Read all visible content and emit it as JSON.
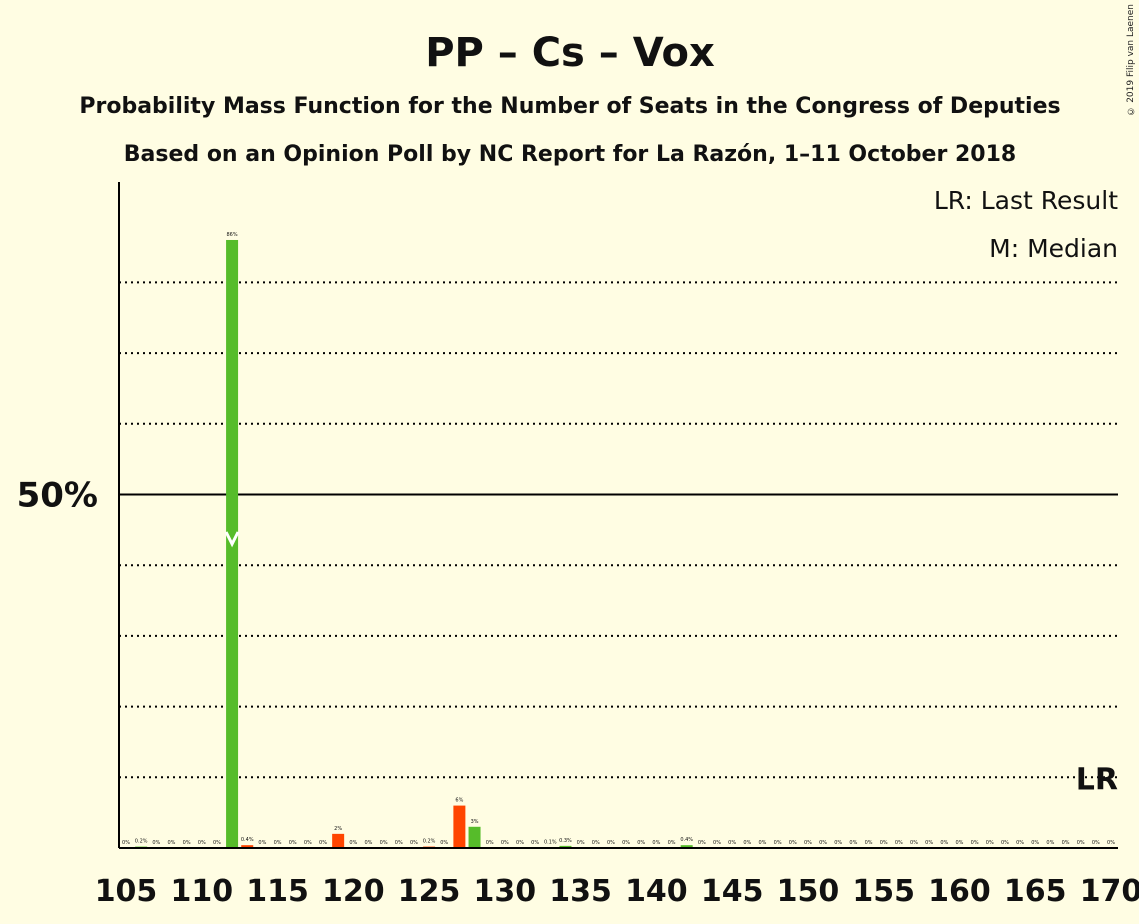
{
  "copyright": "© 2019 Filip van Laenen",
  "chart_data": {
    "type": "bar",
    "title": "PP – Cs – Vox",
    "subtitle": "Probability Mass Function for the Number of Seats in the Congress of Deputies",
    "subtitle2": "Based on an Opinion Poll by NC Report for La Razón, 1–11 October 2018",
    "legend": [
      "LR: Last Result",
      "M: Median"
    ],
    "y_tick_label": "50%",
    "y_tick_value": 50,
    "ylim": [
      0,
      100
    ],
    "dotted_gridlines": [
      10,
      20,
      30,
      40,
      60,
      70,
      80
    ],
    "x_range": [
      105,
      170
    ],
    "x_tick_labels": [
      "105",
      "110",
      "115",
      "120",
      "125",
      "130",
      "135",
      "140",
      "145",
      "150",
      "155",
      "160",
      "165",
      "170"
    ],
    "median_seat": 112,
    "median_label_position_pct": 43,
    "last_result_seat": 169,
    "last_result_label": "LR",
    "bars": [
      {
        "seat": 105,
        "value": 0,
        "label": "0%"
      },
      {
        "seat": 106,
        "value": 0.2,
        "label": "0.2%"
      },
      {
        "seat": 107,
        "value": 0,
        "label": "0%"
      },
      {
        "seat": 108,
        "value": 0,
        "label": "0%"
      },
      {
        "seat": 109,
        "value": 0,
        "label": "0%"
      },
      {
        "seat": 110,
        "value": 0,
        "label": "0%"
      },
      {
        "seat": 111,
        "value": 0,
        "label": "0%"
      },
      {
        "seat": 112,
        "value": 86,
        "label": "86%"
      },
      {
        "seat": 113,
        "value": 0.4,
        "label": "0.4%"
      },
      {
        "seat": 114,
        "value": 0,
        "label": "0%"
      },
      {
        "seat": 115,
        "value": 0,
        "label": "0%"
      },
      {
        "seat": 116,
        "value": 0,
        "label": "0%"
      },
      {
        "seat": 117,
        "value": 0,
        "label": "0%"
      },
      {
        "seat": 118,
        "value": 0,
        "label": "0%"
      },
      {
        "seat": 119,
        "value": 2,
        "label": "2%"
      },
      {
        "seat": 120,
        "value": 0,
        "label": "0%"
      },
      {
        "seat": 121,
        "value": 0,
        "label": "0%"
      },
      {
        "seat": 122,
        "value": 0,
        "label": "0%"
      },
      {
        "seat": 123,
        "value": 0,
        "label": "0%"
      },
      {
        "seat": 124,
        "value": 0,
        "label": "0%"
      },
      {
        "seat": 125,
        "value": 0.2,
        "label": "0.2%"
      },
      {
        "seat": 126,
        "value": 0,
        "label": "0%"
      },
      {
        "seat": 127,
        "value": 6,
        "label": "6%"
      },
      {
        "seat": 128,
        "value": 3,
        "label": "3%"
      },
      {
        "seat": 129,
        "value": 0,
        "label": "0%"
      },
      {
        "seat": 130,
        "value": 0,
        "label": "0%"
      },
      {
        "seat": 131,
        "value": 0,
        "label": "0%"
      },
      {
        "seat": 132,
        "value": 0,
        "label": "0%"
      },
      {
        "seat": 133,
        "value": 0.1,
        "label": "0.1%"
      },
      {
        "seat": 134,
        "value": 0.3,
        "label": "0.3%"
      },
      {
        "seat": 135,
        "value": 0,
        "label": "0%"
      },
      {
        "seat": 136,
        "value": 0,
        "label": "0%"
      },
      {
        "seat": 137,
        "value": 0,
        "label": "0%"
      },
      {
        "seat": 138,
        "value": 0,
        "label": "0%"
      },
      {
        "seat": 139,
        "value": 0,
        "label": "0%"
      },
      {
        "seat": 140,
        "value": 0,
        "label": "0%"
      },
      {
        "seat": 141,
        "value": 0,
        "label": "0%"
      },
      {
        "seat": 142,
        "value": 0.4,
        "label": "0.4%"
      },
      {
        "seat": 143,
        "value": 0,
        "label": "0%"
      },
      {
        "seat": 144,
        "value": 0,
        "label": "0%"
      },
      {
        "seat": 145,
        "value": 0,
        "label": "0%"
      },
      {
        "seat": 146,
        "value": 0,
        "label": "0%"
      },
      {
        "seat": 147,
        "value": 0,
        "label": "0%"
      },
      {
        "seat": 148,
        "value": 0,
        "label": "0%"
      },
      {
        "seat": 149,
        "value": 0,
        "label": "0%"
      },
      {
        "seat": 150,
        "value": 0,
        "label": "0%"
      },
      {
        "seat": 151,
        "value": 0,
        "label": "0%"
      },
      {
        "seat": 152,
        "value": 0,
        "label": "0%"
      },
      {
        "seat": 153,
        "value": 0,
        "label": "0%"
      },
      {
        "seat": 154,
        "value": 0,
        "label": "0%"
      },
      {
        "seat": 155,
        "value": 0,
        "label": "0%"
      },
      {
        "seat": 156,
        "value": 0,
        "label": "0%"
      },
      {
        "seat": 157,
        "value": 0,
        "label": "0%"
      },
      {
        "seat": 158,
        "value": 0,
        "label": "0%"
      },
      {
        "seat": 159,
        "value": 0,
        "label": "0%"
      },
      {
        "seat": 160,
        "value": 0,
        "label": "0%"
      },
      {
        "seat": 161,
        "value": 0,
        "label": "0%"
      },
      {
        "seat": 162,
        "value": 0,
        "label": "0%"
      },
      {
        "seat": 163,
        "value": 0,
        "label": "0%"
      },
      {
        "seat": 164,
        "value": 0,
        "label": "0%"
      },
      {
        "seat": 165,
        "value": 0,
        "label": "0%"
      },
      {
        "seat": 166,
        "value": 0,
        "label": "0%"
      },
      {
        "seat": 167,
        "value": 0,
        "label": "0%"
      },
      {
        "seat": 168,
        "value": 0,
        "label": "0%"
      },
      {
        "seat": 169,
        "value": 0,
        "label": "0%"
      },
      {
        "seat": 170,
        "value": 0,
        "label": "0%"
      }
    ],
    "colors": {
      "background": "#FFFDE3",
      "odd_bar": "#FF4500",
      "even_bar": "#56BC2A",
      "median_marker": "#FFFFFF",
      "axis": "#000000"
    }
  }
}
